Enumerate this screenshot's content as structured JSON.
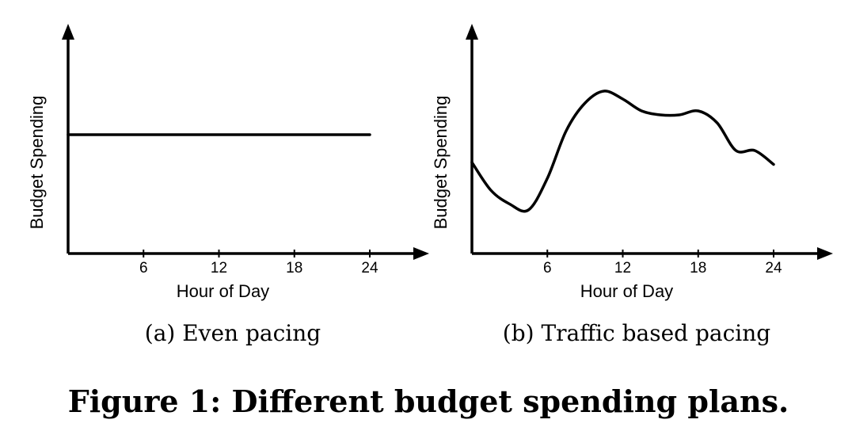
{
  "figure_title": "Figure 1: Different budget spending plans.",
  "chart_data": [
    {
      "type": "line",
      "caption": "(a) Even pacing",
      "xlabel": "Hour of Day",
      "ylabel": "Budget Spending",
      "xticks": [
        "6",
        "12",
        "18",
        "24"
      ],
      "xlim": [
        0,
        29
      ],
      "ylim": [
        0,
        1
      ],
      "grid": false,
      "x": [
        0,
        24
      ],
      "y": [
        0.6,
        0.6
      ]
    },
    {
      "type": "line",
      "caption": "(b) Traffic based pacing",
      "xlabel": "Hour of Day",
      "ylabel": "Budget Spending",
      "xticks": [
        "6",
        "12",
        "18",
        "24"
      ],
      "xlim": [
        0,
        29
      ],
      "ylim": [
        0,
        1
      ],
      "grid": false,
      "x": [
        0,
        1.5,
        3,
        4.5,
        6,
        7.5,
        9,
        10.5,
        12,
        13.5,
        15,
        16.5,
        18,
        19.5,
        21,
        22.5,
        24
      ],
      "y": [
        0.46,
        0.32,
        0.25,
        0.22,
        0.38,
        0.62,
        0.76,
        0.82,
        0.78,
        0.72,
        0.7,
        0.7,
        0.72,
        0.66,
        0.52,
        0.52,
        0.45
      ]
    }
  ]
}
